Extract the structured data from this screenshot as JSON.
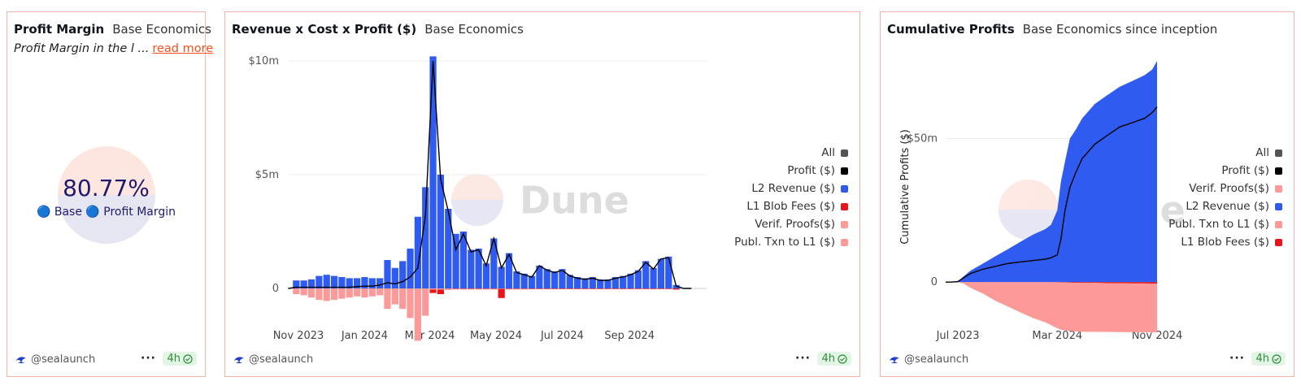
{
  "watermark": "Dune",
  "colors": {
    "accent": "#f4511e",
    "l2_revenue": "#2f5bf0",
    "l1_blob": "#e8141c",
    "proofs": "#fb9a99",
    "profit": "#000000",
    "all": "#555555",
    "badge_green": "#2e8b3a"
  },
  "card1": {
    "title": "Profit Margin",
    "subtitle": "Base Economics",
    "description": "Profit Margin in the l ...",
    "read_more": "read more",
    "counter_value": "80.77%",
    "counter_label": "🔵 Base 🔵 Profit Margin",
    "author": "@sealaunch",
    "freshness": "4h"
  },
  "card2": {
    "title": "Revenue x Cost x Profit ($)",
    "subtitle": "Base Economics",
    "author": "@sealaunch",
    "freshness": "4h",
    "legend": [
      {
        "label": "All",
        "color": "#555555"
      },
      {
        "label": "Profit ($)",
        "color": "#000000"
      },
      {
        "label": "L2 Revenue ($)",
        "color": "#2f5bf0"
      },
      {
        "label": "L1 Blob Fees ($)",
        "color": "#e8141c"
      },
      {
        "label": "Verif. Proofs($)",
        "color": "#fb9a99"
      },
      {
        "label": "Publ. Txn to L1 ($)",
        "color": "#fb9a99"
      }
    ]
  },
  "card3": {
    "title": "Cumulative Profits",
    "subtitle": "Base Economics since inception",
    "author": "@sealaunch",
    "freshness": "4h",
    "legend": [
      {
        "label": "All",
        "color": "#555555"
      },
      {
        "label": "Profit ($)",
        "color": "#000000"
      },
      {
        "label": "Verif. Proofs($)",
        "color": "#fb9a99"
      },
      {
        "label": "L2 Revenue ($)",
        "color": "#2f5bf0"
      },
      {
        "label": "Publ. Txn to L1 ($)",
        "color": "#fb9a99"
      },
      {
        "label": "L1 Blob Fees ($)",
        "color": "#e8141c"
      }
    ]
  },
  "chart_data": [
    {
      "type": "bar",
      "title": "Revenue x Cost x Profit ($)",
      "subtitle": "Base Economics",
      "ylim": [
        -2500000,
        10000000
      ],
      "yticks": [
        {
          "value": 0,
          "label": "0"
        },
        {
          "value": 5000000,
          "label": "$5m"
        },
        {
          "value": 10000000,
          "label": "$10m"
        }
      ],
      "x_range": [
        "2023-10-23",
        "2024-11-11"
      ],
      "xticks": [
        {
          "date": "2023-11-01",
          "label": "Nov 2023"
        },
        {
          "date": "2024-01-01",
          "label": "Jan 2024"
        },
        {
          "date": "2024-03-01",
          "label": "Mar 2024"
        },
        {
          "date": "2024-05-01",
          "label": "May 2024"
        },
        {
          "date": "2024-07-01",
          "label": "Jul 2024"
        },
        {
          "date": "2024-09-01",
          "label": "Sep 2024"
        }
      ],
      "weeks": [
        "2023-10-30",
        "2023-11-06",
        "2023-11-13",
        "2023-11-20",
        "2023-11-27",
        "2023-12-04",
        "2023-12-11",
        "2023-12-18",
        "2023-12-25",
        "2024-01-01",
        "2024-01-08",
        "2024-01-15",
        "2024-01-22",
        "2024-01-29",
        "2024-02-05",
        "2024-02-12",
        "2024-02-19",
        "2024-02-26",
        "2024-03-04",
        "2024-03-11",
        "2024-03-18",
        "2024-03-25",
        "2024-04-01",
        "2024-04-08",
        "2024-04-15",
        "2024-04-22",
        "2024-04-29",
        "2024-05-06",
        "2024-05-13",
        "2024-05-20",
        "2024-05-27",
        "2024-06-03",
        "2024-06-10",
        "2024-06-17",
        "2024-06-24",
        "2024-07-01",
        "2024-07-08",
        "2024-07-15",
        "2024-07-22",
        "2024-07-29",
        "2024-08-05",
        "2024-08-12",
        "2024-08-19",
        "2024-08-26",
        "2024-09-02",
        "2024-09-09",
        "2024-09-16",
        "2024-09-23",
        "2024-09-30",
        "2024-10-07",
        "2024-10-14",
        "2024-10-21",
        "2024-10-28"
      ],
      "series": [
        {
          "name": "L2 Revenue ($)",
          "values": [
            350000,
            350000,
            400000,
            550000,
            600000,
            550000,
            500000,
            450000,
            450000,
            500000,
            450000,
            450000,
            1250000,
            900000,
            1200000,
            1750000,
            3150000,
            4450000,
            10200000,
            5000000,
            3500000,
            2400000,
            2500000,
            1700000,
            1750000,
            1100000,
            2200000,
            950000,
            1550000,
            750000,
            650000,
            550000,
            1000000,
            850000,
            750000,
            850000,
            600000,
            500000,
            450000,
            500000,
            400000,
            400000,
            500000,
            550000,
            650000,
            800000,
            1200000,
            900000,
            1300000,
            1400000,
            150000,
            0,
            0
          ]
        },
        {
          "name": "Verif. Proofs($)",
          "values": [
            0,
            0,
            0,
            0,
            0,
            0,
            0,
            0,
            0,
            0,
            0,
            0,
            0,
            0,
            0,
            0,
            0,
            0,
            0,
            0,
            0,
            0,
            0,
            0,
            0,
            0,
            0,
            0,
            0,
            0,
            0,
            0,
            0,
            0,
            0,
            0,
            0,
            0,
            0,
            0,
            0,
            0,
            0,
            0,
            0,
            0,
            0,
            0,
            0,
            0,
            0,
            0,
            0
          ]
        },
        {
          "name": "Publ. Txn to L1 ($)",
          "values": [
            -250000,
            -300000,
            -400000,
            -500000,
            -550000,
            -500000,
            -450000,
            -400000,
            -350000,
            -400000,
            -350000,
            -300000,
            -900000,
            -700000,
            -900000,
            -1300000,
            -2300000,
            -1200000,
            -50000,
            -50000,
            -30000,
            -20000,
            -20000,
            -20000,
            -20000,
            -20000,
            -20000,
            -20000,
            -20000,
            -20000,
            -20000,
            -10000,
            -10000,
            -10000,
            -10000,
            -10000,
            -10000,
            -10000,
            -10000,
            -10000,
            -10000,
            -10000,
            -10000,
            -10000,
            -10000,
            -10000,
            -10000,
            -10000,
            -10000,
            -10000,
            0,
            0,
            0
          ]
        },
        {
          "name": "L1 Blob Fees ($)",
          "values": [
            0,
            0,
            0,
            0,
            0,
            0,
            0,
            0,
            0,
            0,
            0,
            0,
            0,
            0,
            0,
            0,
            0,
            0,
            -150000,
            -200000,
            -20000,
            -20000,
            -20000,
            -20000,
            -20000,
            -20000,
            -20000,
            -400000,
            -20000,
            -20000,
            -20000,
            -20000,
            -20000,
            -20000,
            -20000,
            -20000,
            -20000,
            -20000,
            -20000,
            -20000,
            -20000,
            -20000,
            -20000,
            -20000,
            -20000,
            -20000,
            -20000,
            -20000,
            -20000,
            -20000,
            -50000,
            0,
            0
          ]
        },
        {
          "name": "Profit ($)",
          "type": "line",
          "values": [
            50000,
            50000,
            50000,
            50000,
            50000,
            50000,
            50000,
            50000,
            80000,
            100000,
            100000,
            150000,
            250000,
            200000,
            300000,
            500000,
            900000,
            3200000,
            10000000,
            4800000,
            3400000,
            1700000,
            2400000,
            1600000,
            1700000,
            1000000,
            2200000,
            900000,
            1500000,
            700000,
            600000,
            500000,
            1000000,
            800000,
            700000,
            800000,
            550000,
            450000,
            400000,
            450000,
            350000,
            350000,
            450000,
            500000,
            600000,
            750000,
            1150000,
            850000,
            1300000,
            1350000,
            100000,
            0,
            0
          ]
        }
      ]
    },
    {
      "type": "area",
      "title": "Cumulative Profits",
      "subtitle": "Base Economics since inception",
      "ylabel": "Cumulative Profits ($)",
      "ylim": [
        -22000000,
        77000000
      ],
      "yticks": [
        {
          "value": 0,
          "label": "0"
        },
        {
          "value": 50000000,
          "label": "$50m"
        }
      ],
      "x_range": [
        "2023-06-01",
        "2024-11-01"
      ],
      "xticks": [
        {
          "date": "2023-07-01",
          "label": "Jul 2023"
        },
        {
          "date": "2024-03-01",
          "label": "Mar 2024"
        },
        {
          "date": "2024-11-01",
          "label": "Nov 2024"
        }
      ],
      "x": [
        "2023-06-01",
        "2023-06-15",
        "2023-07-01",
        "2023-07-15",
        "2023-08-01",
        "2023-09-01",
        "2023-10-01",
        "2023-11-01",
        "2023-12-01",
        "2024-01-01",
        "2024-02-01",
        "2024-02-15",
        "2024-03-01",
        "2024-03-10",
        "2024-03-20",
        "2024-04-01",
        "2024-04-15",
        "2024-05-01",
        "2024-06-01",
        "2024-07-01",
        "2024-08-01",
        "2024-09-01",
        "2024-10-01",
        "2024-10-20",
        "2024-11-01"
      ],
      "series": [
        {
          "name": "L2 Revenue ($)",
          "values": [
            0,
            0,
            200000,
            2000000,
            4000000,
            6500000,
            9000000,
            11500000,
            14000000,
            16500000,
            18500000,
            20000000,
            25000000,
            35000000,
            42000000,
            50000000,
            53000000,
            57000000,
            62000000,
            65000000,
            68000000,
            70000000,
            72000000,
            74000000,
            77000000
          ]
        },
        {
          "name": "L1 Blob Fees ($)",
          "values": [
            0,
            0,
            0,
            0,
            0,
            0,
            0,
            0,
            0,
            0,
            0,
            0,
            -50000,
            -100000,
            -150000,
            -200000,
            -250000,
            -300000,
            -300000,
            -350000,
            -400000,
            -450000,
            -450000,
            -500000,
            -500000
          ]
        },
        {
          "name": "Publ. Txn to L1 ($)",
          "values": [
            0,
            0,
            0,
            -500000,
            -2000000,
            -4000000,
            -6500000,
            -8500000,
            -10500000,
            -12500000,
            -14000000,
            -15000000,
            -16000000,
            -16500000,
            -16700000,
            -16800000,
            -16900000,
            -17000000,
            -17000000,
            -17000000,
            -17000000,
            -17000000,
            -17000000,
            -17000000,
            -17000000
          ]
        },
        {
          "name": "Verif. Proofs($)",
          "values": [
            0,
            0,
            0,
            0,
            0,
            0,
            0,
            0,
            0,
            0,
            0,
            0,
            0,
            0,
            0,
            0,
            0,
            0,
            0,
            0,
            0,
            0,
            0,
            0,
            0
          ]
        },
        {
          "name": "Profit ($)",
          "type": "line",
          "values": [
            0,
            0,
            200000,
            1500000,
            3000000,
            4500000,
            5500000,
            6500000,
            7000000,
            7500000,
            8000000,
            8500000,
            9500000,
            15000000,
            25000000,
            33000000,
            38000000,
            43000000,
            48000000,
            51000000,
            54000000,
            55500000,
            57000000,
            59000000,
            61000000
          ]
        }
      ]
    }
  ]
}
